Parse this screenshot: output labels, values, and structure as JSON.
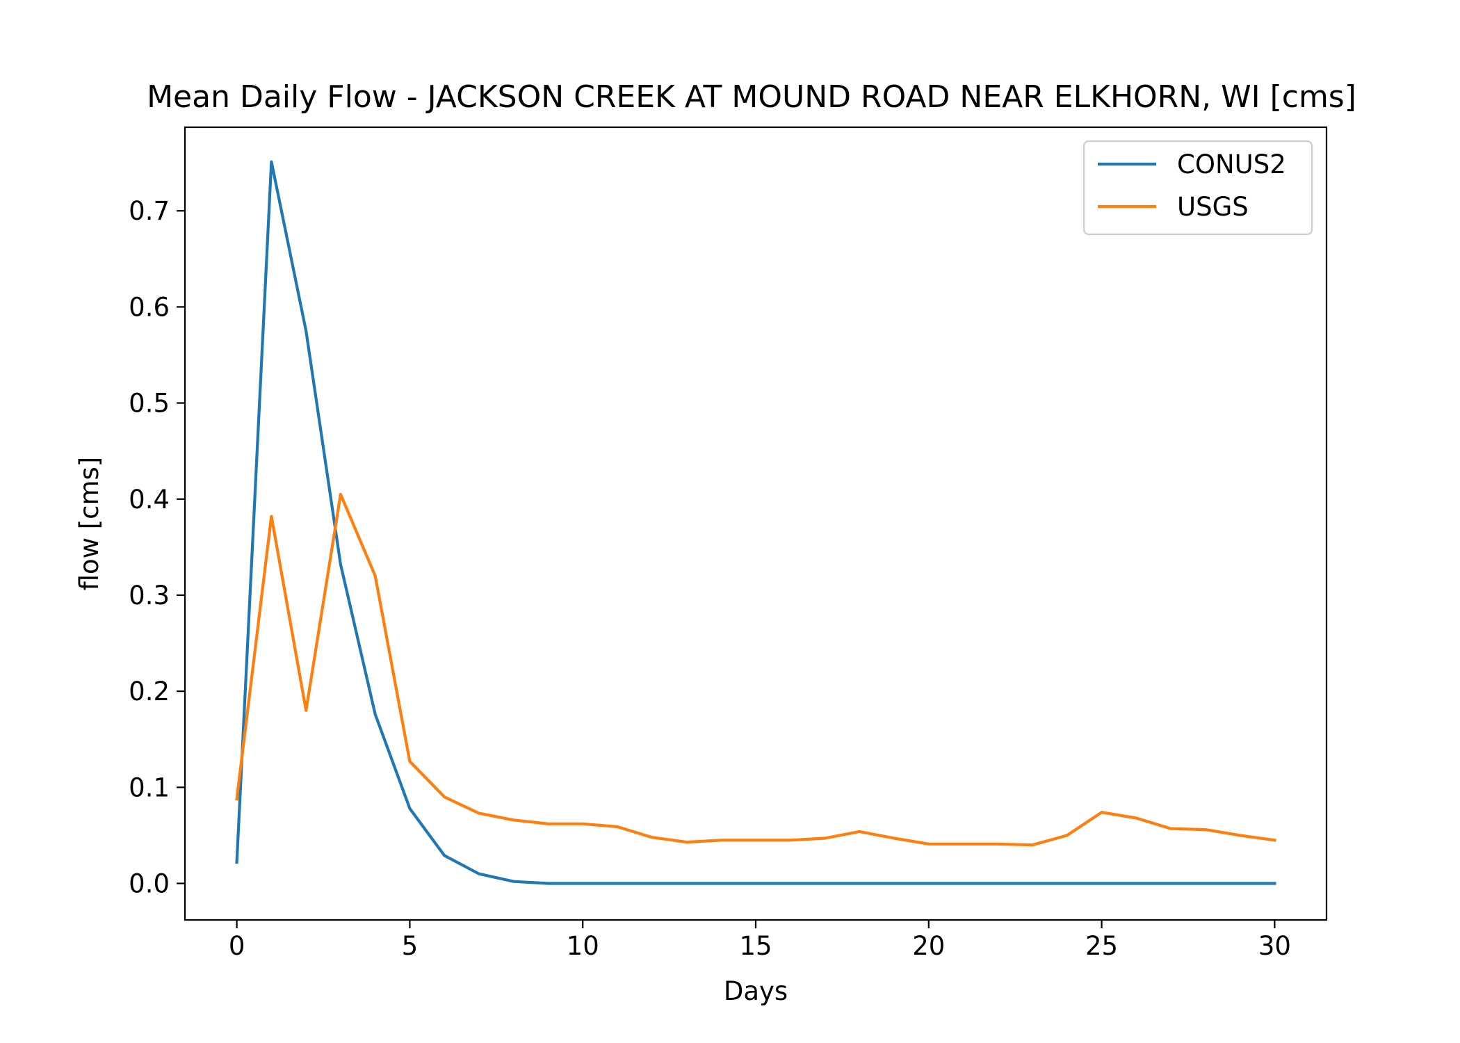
{
  "chart_data": {
    "type": "line",
    "title": "Mean Daily Flow - JACKSON CREEK AT MOUND ROAD NEAR ELKHORN, WI [cms]",
    "xlabel": "Days",
    "ylabel": "flow [cms]",
    "xlim": [
      -1.5,
      31.5
    ],
    "ylim": [
      -0.038,
      0.787
    ],
    "xticks": [
      0,
      5,
      10,
      15,
      20,
      25,
      30
    ],
    "yticks": [
      0.0,
      0.1,
      0.2,
      0.3,
      0.4,
      0.5,
      0.6,
      0.7
    ],
    "x": [
      0,
      1,
      2,
      3,
      4,
      5,
      6,
      7,
      8,
      9,
      10,
      11,
      12,
      13,
      14,
      15,
      16,
      17,
      18,
      19,
      20,
      21,
      22,
      23,
      24,
      25,
      26,
      27,
      28,
      29,
      30
    ],
    "series": [
      {
        "name": "CONUS2",
        "color": "#1f77b4",
        "values": [
          0.022,
          0.751,
          0.575,
          0.332,
          0.176,
          0.078,
          0.029,
          0.01,
          0.002,
          0.0,
          0.0,
          0.0,
          0.0,
          0.0,
          0.0,
          0.0,
          0.0,
          0.0,
          0.0,
          0.0,
          0.0,
          0.0,
          0.0,
          0.0,
          0.0,
          0.0,
          0.0,
          0.0,
          0.0,
          0.0,
          0.0
        ]
      },
      {
        "name": "USGS",
        "color": "#ff7f0e",
        "values": [
          0.088,
          0.382,
          0.18,
          0.405,
          0.32,
          0.127,
          0.09,
          0.073,
          0.066,
          0.062,
          0.062,
          0.059,
          0.048,
          0.043,
          0.045,
          0.045,
          0.045,
          0.047,
          0.054,
          0.047,
          0.041,
          0.041,
          0.041,
          0.04,
          0.05,
          0.074,
          0.068,
          0.057,
          0.056,
          0.05,
          0.045
        ]
      }
    ],
    "grid": false,
    "legend": "top-right"
  }
}
